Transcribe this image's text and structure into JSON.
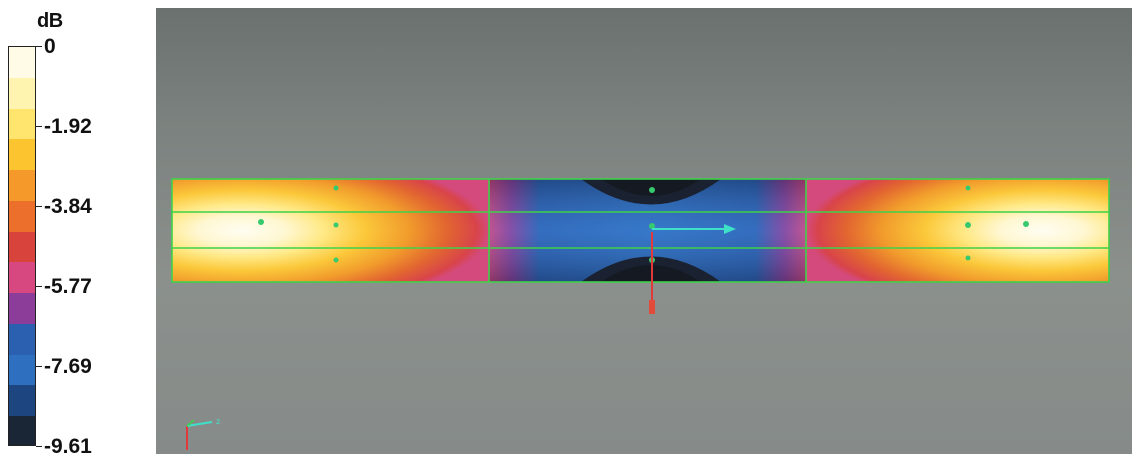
{
  "legend": {
    "unit": "dB",
    "labels": [
      "0",
      "-1.92",
      "-3.84",
      "-5.77",
      "-7.69",
      "-9.61"
    ],
    "colors": [
      "#fffbe6",
      "#fff3b0",
      "#ffe56e",
      "#fcc52f",
      "#f59a2a",
      "#ec6f2c",
      "#d8433b",
      "#d84880",
      "#8c3d9a",
      "#2b5fb0",
      "#2f6fc0",
      "#1d4680",
      "#1a2535"
    ]
  },
  "view": {
    "axis_colors": {
      "x": "#3ee0c8",
      "y": "#e23a3a"
    }
  }
}
